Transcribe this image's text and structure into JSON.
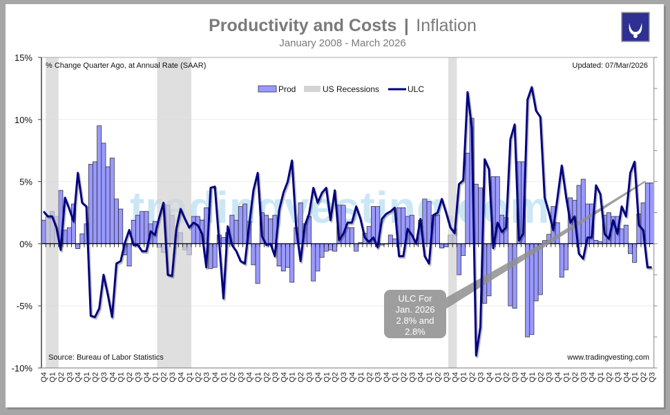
{
  "header": {
    "title_main": "Productivity and Costs",
    "title_sep": "|",
    "title_sub": "Inflation",
    "subtitle": "January 2008 - March 2026"
  },
  "logo": {
    "icon": "bull-horns-logo",
    "color": "#2e3192"
  },
  "notes": {
    "units": "% Change Quarter Ago, at Annual Rate (SAAR)",
    "updated": "Updated: 07/Mar/2026",
    "source": "Source: Bureau of Labor Statistics",
    "website": "www.tradingvesting.com",
    "watermark": "tradingvesting.com"
  },
  "annotation": {
    "lines": [
      "ULC For",
      "Jan. 2026",
      "2.8% and",
      "2.8%"
    ]
  },
  "chart_data": {
    "type": "bar+line",
    "ylim": [
      -10,
      15
    ],
    "y_ticks": [
      15,
      10,
      5,
      0,
      -5,
      -10
    ],
    "y_tick_labels": [
      "15%",
      "10%",
      "5%",
      "0%",
      "-5%",
      "-10%"
    ],
    "grid": true,
    "legend": {
      "placement": "top-center",
      "items": [
        "Prod",
        "US Recessions",
        "ULC"
      ]
    },
    "colors": {
      "Prod": "#9999ff",
      "ULC": "#000080",
      "US Recessions": "#d3d3d3"
    },
    "x_tick_labels": [
      "Q4",
      "Q1",
      "Q2",
      "Q3",
      "Q4",
      "Q1",
      "Q2",
      "Q3",
      "Q4",
      "Q1",
      "Q2",
      "Q3",
      "Q4",
      "Q1",
      "Q2",
      "Q3",
      "Q4",
      "Q1",
      "Q2",
      "Q3",
      "Q4",
      "Q1",
      "Q2",
      "Q3",
      "Q4",
      "Q1",
      "Q2",
      "Q3",
      "Q4",
      "Q1",
      "Q2",
      "Q3",
      "Q4",
      "Q1",
      "Q2",
      "Q3",
      "Q4",
      "Q1",
      "Q2",
      "Q3",
      "Q4",
      "Q1",
      "Q2",
      "Q3",
      "Q4",
      "Q1",
      "Q2",
      "Q3",
      "Q4",
      "Q1",
      "Q2",
      "Q3",
      "Q4",
      "Q1",
      "Q2",
      "Q3",
      "Q4",
      "Q1",
      "Q2",
      "Q3",
      "Q4",
      "Q1",
      "Q2",
      "Q3",
      "Q4",
      "Q1",
      "Q2",
      "Q3",
      "Q4",
      "Q1",
      "Q2",
      "Q3"
    ],
    "recession_bar_ranges": [
      [
        2,
        4
      ],
      [
        28,
        35
      ],
      [
        96,
        97
      ]
    ],
    "series": [
      {
        "name": "Prod",
        "type": "bar",
        "values": [
          1.9,
          2.2,
          2.6,
          2.2,
          4.3,
          1.1,
          1.3,
          3.2,
          -0.4,
          0.8,
          1.6,
          6.4,
          6.6,
          9.5,
          8.1,
          6.2,
          6.9,
          3.6,
          2.8,
          -0.9,
          -1.8,
          1.9,
          2.3,
          2.6,
          2.6,
          1.6,
          1.8,
          -0.3,
          -0.7,
          3.1,
          2.3,
          0.7,
          0.9,
          -0.5,
          -0.9,
          2.2,
          2.2,
          1.9,
          2.9,
          -2.0,
          -1.9,
          0.7,
          0.5,
          0.9,
          2.3,
          1.9,
          3.0,
          3.2,
          1.8,
          -1.7,
          -3.2,
          2.5,
          2.3,
          2.0,
          2.3,
          -1.8,
          -2.2,
          -1.9,
          -3.1,
          1.3,
          3.3,
          1.6,
          2.2,
          -3.0,
          -2.2,
          -1.1,
          -0.6,
          -0.5,
          -0.6,
          3.1,
          3.1,
          1.3,
          1.3,
          -0.6,
          0.1,
          0.85,
          1.4,
          3.0,
          3.0,
          -0.1,
          0.0,
          0.7,
          0.4,
          2.9,
          2.9,
          2.2,
          2.3,
          0.0,
          1.9,
          3.6,
          3.4,
          2.3,
          2.3,
          -0.35,
          -0.25,
          0.7,
          1.2,
          -2.5,
          -0.95,
          7.3,
          10.1,
          4.8,
          4.5,
          -4.8,
          -4.2,
          5.4,
          5.4,
          2.3,
          2.1,
          -5.0,
          -5.2,
          6.6,
          6.6,
          -7.5,
          -7.3,
          -4.6,
          -4.1,
          0.26,
          0.76,
          3.0,
          1.7,
          -2.7,
          -2.1,
          3.7,
          3.5,
          4.7,
          5.2,
          3.2,
          3.2,
          0.28,
          0.17,
          2.3,
          2.5,
          2.2,
          2.2,
          1.2,
          1.5,
          -0.8,
          -1.5,
          2.4,
          3.3,
          4.9,
          4.9
        ]
      },
      {
        "name": "ULC",
        "type": "line",
        "values": [
          2.6,
          2.2,
          2.2,
          1.3,
          -0.5,
          3.7,
          2.8,
          1.8,
          5.7,
          3.3,
          3.0,
          -5.8,
          -5.9,
          -5.2,
          -2.5,
          -4.1,
          -5.9,
          -1.6,
          -1.4,
          0.1,
          1.1,
          -0.1,
          -0.1,
          -0.6,
          -0.6,
          1.0,
          0.7,
          2.1,
          3.3,
          -2.5,
          -2.6,
          1.2,
          2.8,
          2.0,
          1.3,
          1.7,
          1.5,
          0.8,
          -1.9,
          4.5,
          4.6,
          0.1,
          -4.4,
          1.4,
          -0.1,
          -0.6,
          -1.4,
          -1.6,
          1.5,
          4.3,
          5.7,
          0.6,
          -0.1,
          0.0,
          -1.0,
          2.7,
          4.1,
          5.0,
          6.7,
          1.2,
          -1.4,
          1.5,
          2.4,
          4.5,
          3.3,
          4.1,
          4.5,
          1.9,
          4.3,
          0.3,
          0.8,
          1.7,
          1.7,
          3.0,
          2.0,
          0.5,
          0.15,
          0.5,
          -0.3,
          2.0,
          2.4,
          2.6,
          2.9,
          -1.0,
          -1.0,
          1.2,
          0.7,
          0.0,
          2.0,
          -1.0,
          -1.6,
          2.3,
          2.5,
          3.6,
          2.5,
          1.3,
          0.85,
          4.8,
          5.1,
          12.2,
          9.3,
          -9.0,
          -6.7,
          6.8,
          6.0,
          -0.35,
          1.7,
          0.95,
          1.3,
          8.4,
          9.6,
          0.26,
          0.8,
          11.6,
          12.6,
          10.7,
          10.2,
          3.7,
          2.5,
          1.1,
          3.7,
          6.3,
          3.8,
          1.7,
          2.2,
          -0.8,
          -1.2,
          0.5,
          0.5,
          4.7,
          4.0,
          0.8,
          0.4,
          1.9,
          0.8,
          3.0,
          2.2,
          5.7,
          6.6,
          1.5,
          1.1,
          -1.9,
          -1.9
        ]
      }
    ]
  }
}
